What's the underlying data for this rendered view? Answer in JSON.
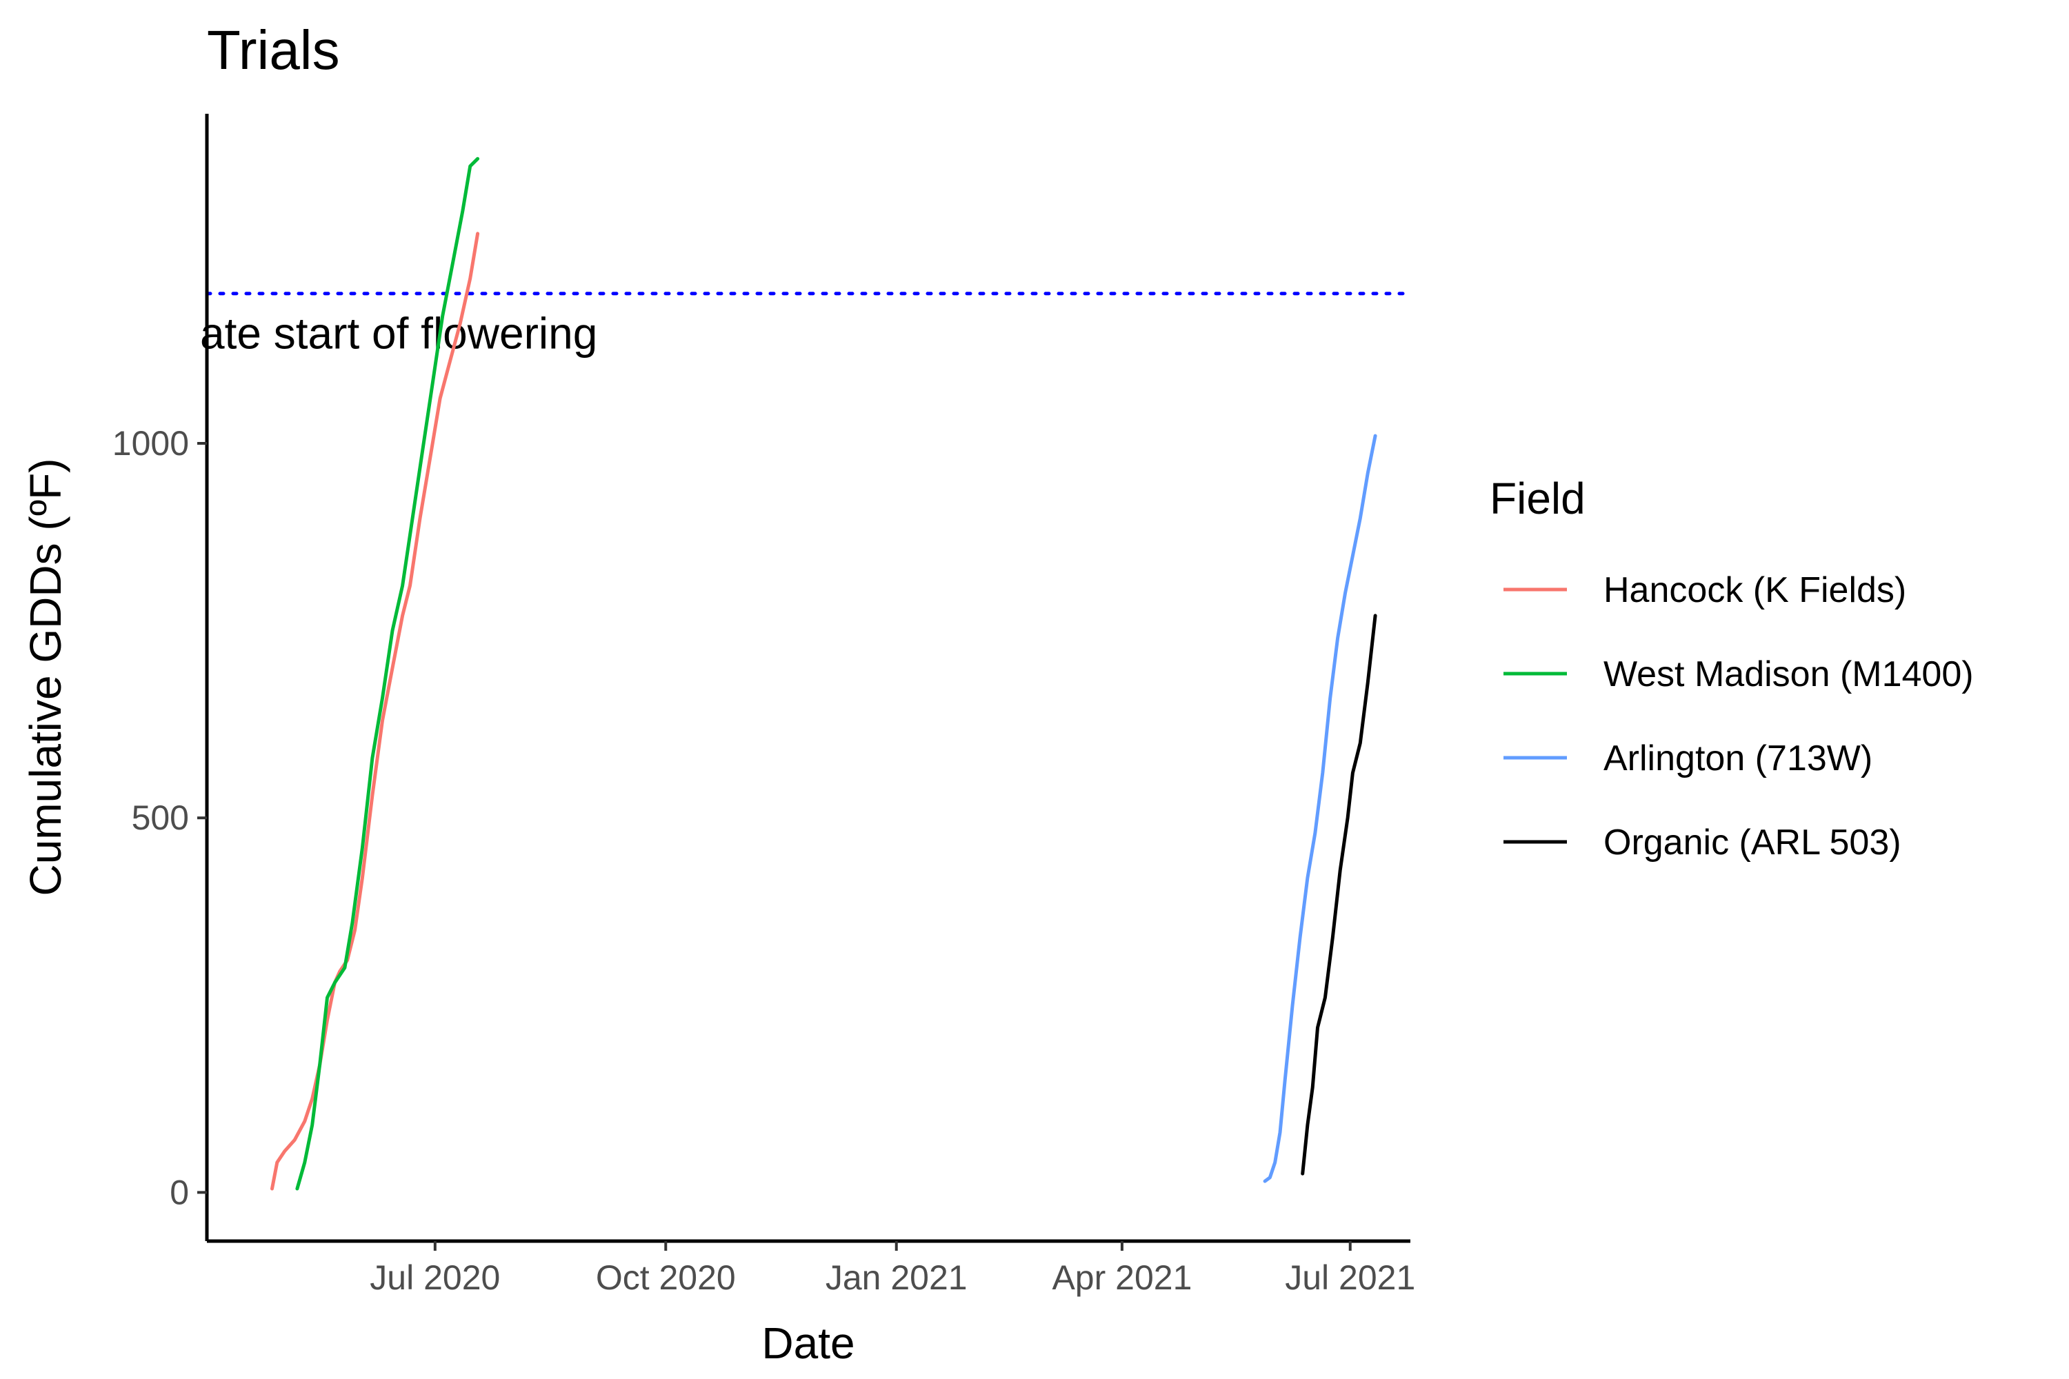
{
  "chart_data": {
    "type": "line",
    "title": "Trials",
    "xlabel": "Date",
    "ylabel": "Cumulative GDDs (ºF)",
    "x_scale": "date",
    "xlim": [
      "2020-04-01",
      "2021-07-25"
    ],
    "ylim": [
      -65,
      1440
    ],
    "x_ticks": [
      {
        "date": "2020-07-01",
        "label": "Jul 2020"
      },
      {
        "date": "2020-10-01",
        "label": "Oct 2020"
      },
      {
        "date": "2021-01-01",
        "label": "Jan 2021"
      },
      {
        "date": "2021-04-01",
        "label": "Apr 2021"
      },
      {
        "date": "2021-07-01",
        "label": "Jul 2021"
      }
    ],
    "y_ticks": [
      0,
      500,
      1000
    ],
    "grid": false,
    "legend": {
      "title": "Field",
      "position": "right"
    },
    "reference_line": {
      "y": 1200,
      "color": "#0000ff",
      "style": "dotted",
      "label": "ate start of flowering"
    },
    "series": [
      {
        "name": "Hancock (K Fields)",
        "color": "#f8766d",
        "points": [
          [
            "2020-04-27",
            5
          ],
          [
            "2020-04-29",
            40
          ],
          [
            "2020-05-02",
            55
          ],
          [
            "2020-05-06",
            70
          ],
          [
            "2020-05-10",
            95
          ],
          [
            "2020-05-13",
            125
          ],
          [
            "2020-05-16",
            170
          ],
          [
            "2020-05-19",
            230
          ],
          [
            "2020-05-22",
            280
          ],
          [
            "2020-05-24",
            295
          ],
          [
            "2020-05-27",
            310
          ],
          [
            "2020-05-30",
            350
          ],
          [
            "2020-06-02",
            420
          ],
          [
            "2020-06-06",
            530
          ],
          [
            "2020-06-10",
            630
          ],
          [
            "2020-06-14",
            700
          ],
          [
            "2020-06-18",
            770
          ],
          [
            "2020-06-21",
            810
          ],
          [
            "2020-06-25",
            900
          ],
          [
            "2020-06-29",
            980
          ],
          [
            "2020-07-03",
            1060
          ],
          [
            "2020-07-07",
            1110
          ],
          [
            "2020-07-11",
            1160
          ],
          [
            "2020-07-15",
            1220
          ],
          [
            "2020-07-18",
            1280
          ]
        ]
      },
      {
        "name": "West Madison (M1400)",
        "color": "#00ba38",
        "points": [
          [
            "2020-05-07",
            5
          ],
          [
            "2020-05-10",
            40
          ],
          [
            "2020-05-13",
            90
          ],
          [
            "2020-05-16",
            170
          ],
          [
            "2020-05-19",
            260
          ],
          [
            "2020-05-22",
            280
          ],
          [
            "2020-05-26",
            300
          ],
          [
            "2020-05-29",
            360
          ],
          [
            "2020-06-02",
            460
          ],
          [
            "2020-06-06",
            580
          ],
          [
            "2020-06-10",
            660
          ],
          [
            "2020-06-14",
            750
          ],
          [
            "2020-06-18",
            810
          ],
          [
            "2020-06-22",
            900
          ],
          [
            "2020-06-26",
            990
          ],
          [
            "2020-06-30",
            1080
          ],
          [
            "2020-07-04",
            1170
          ],
          [
            "2020-07-08",
            1240
          ],
          [
            "2020-07-12",
            1310
          ],
          [
            "2020-07-15",
            1370
          ],
          [
            "2020-07-18",
            1380
          ]
        ]
      },
      {
        "name": "Arlington (713W)",
        "color": "#619cff",
        "points": [
          [
            "2021-05-28",
            15
          ],
          [
            "2021-05-30",
            20
          ],
          [
            "2021-06-01",
            40
          ],
          [
            "2021-06-03",
            80
          ],
          [
            "2021-06-05",
            150
          ],
          [
            "2021-06-08",
            250
          ],
          [
            "2021-06-11",
            340
          ],
          [
            "2021-06-14",
            420
          ],
          [
            "2021-06-17",
            480
          ],
          [
            "2021-06-20",
            560
          ],
          [
            "2021-06-23",
            660
          ],
          [
            "2021-06-26",
            740
          ],
          [
            "2021-06-29",
            800
          ],
          [
            "2021-07-02",
            850
          ],
          [
            "2021-07-05",
            900
          ],
          [
            "2021-07-08",
            960
          ],
          [
            "2021-07-11",
            1010
          ]
        ]
      },
      {
        "name": "Organic (ARL 503)",
        "color": "#000000",
        "points": [
          [
            "2021-06-12",
            25
          ],
          [
            "2021-06-14",
            90
          ],
          [
            "2021-06-16",
            140
          ],
          [
            "2021-06-18",
            220
          ],
          [
            "2021-06-21",
            260
          ],
          [
            "2021-06-24",
            340
          ],
          [
            "2021-06-27",
            430
          ],
          [
            "2021-06-30",
            500
          ],
          [
            "2021-07-02",
            560
          ],
          [
            "2021-07-05",
            600
          ],
          [
            "2021-07-08",
            680
          ],
          [
            "2021-07-11",
            770
          ]
        ]
      }
    ]
  }
}
